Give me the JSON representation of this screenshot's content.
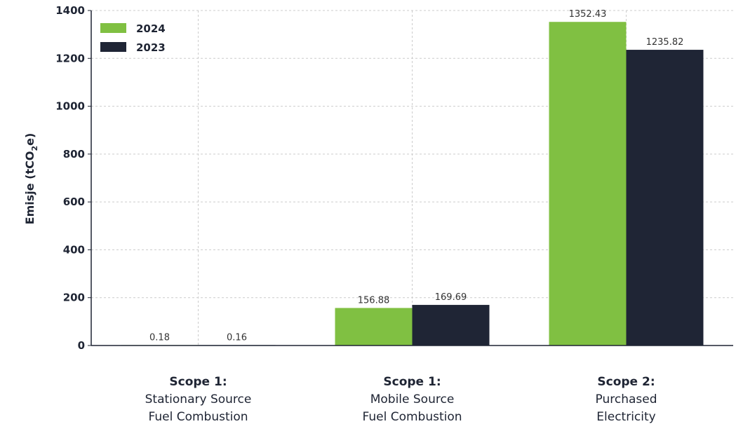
{
  "chart_data": {
    "type": "bar",
    "categories": [
      [
        "Scope 1:",
        "Stationary Source",
        "Fuel Combustion"
      ],
      [
        "Scope 1:",
        "Mobile Source",
        "Fuel Combustion"
      ],
      [
        "Scope 2:",
        "Purchased",
        "Electricity"
      ]
    ],
    "series": [
      {
        "name": "2024",
        "values": [
          0.18,
          156.88,
          1352.43
        ],
        "color": "#80c042"
      },
      {
        "name": "2023",
        "values": [
          0.16,
          169.69,
          1235.82
        ],
        "color": "#1f2535"
      }
    ],
    "data_labels": [
      [
        "0.18",
        "156.88",
        "1352.43"
      ],
      [
        "0.16",
        "169.69",
        "1235.82"
      ]
    ],
    "ylabel": {
      "prefix": "Emisje (tCO",
      "sub": "2",
      "suffix": "e)"
    },
    "yticks": [
      0,
      200,
      400,
      600,
      800,
      1000,
      1200,
      1400
    ],
    "ylim": [
      0,
      1400
    ],
    "grid": true,
    "legend": "top-left"
  }
}
